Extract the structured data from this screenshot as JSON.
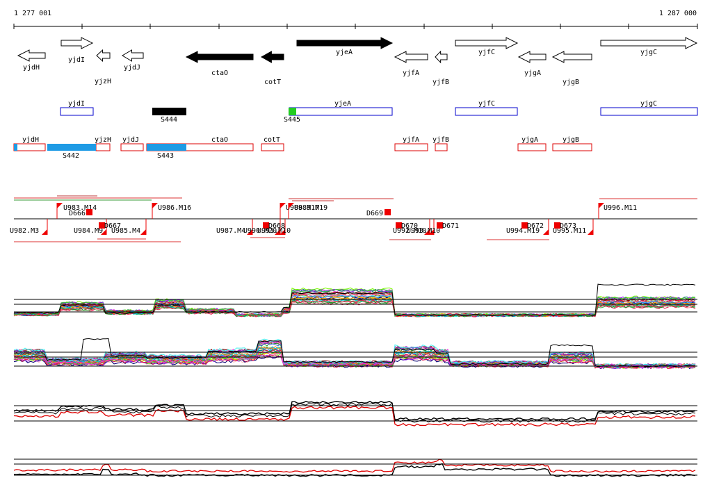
{
  "ruler": {
    "start_label": "1 277 001",
    "end_label": "1 287 000",
    "tick_count": 11
  },
  "colors": {
    "gene_track_outline": "#0000cc",
    "operon_outline": "#dd0000",
    "predicted_segment": "#1e9be5",
    "strong_segment": "#000000",
    "start_segment": "#22cc22",
    "promoter_marker": "#ee0000",
    "line_series_black": "#000000",
    "line_series_red": "#dd0000"
  },
  "genes": [
    {
      "name": "yjdH",
      "strand": "-",
      "filled": false
    },
    {
      "name": "yjdI",
      "strand": "+",
      "filled": false
    },
    {
      "name": "yjzH",
      "strand": "-",
      "filled": false
    },
    {
      "name": "yjdJ",
      "strand": "-",
      "filled": false
    },
    {
      "name": "ctaO",
      "strand": "-",
      "filled": true
    },
    {
      "name": "cotT",
      "strand": "-",
      "filled": true
    },
    {
      "name": "yjeA",
      "strand": "+",
      "filled": true
    },
    {
      "name": "yjfA",
      "strand": "-",
      "filled": false
    },
    {
      "name": "yjfB",
      "strand": "-",
      "filled": false
    },
    {
      "name": "yjfC",
      "strand": "+",
      "filled": false
    },
    {
      "name": "yjgA",
      "strand": "-",
      "filled": false
    },
    {
      "name": "yjgB",
      "strand": "-",
      "filled": false
    },
    {
      "name": "yjgC",
      "strand": "+",
      "filled": false
    }
  ],
  "forward_track": {
    "boxes": [
      {
        "label": "yjdI"
      },
      {
        "label": "yjeA"
      },
      {
        "label": "yjfC"
      },
      {
        "label": "yjgC"
      }
    ],
    "segments": [
      {
        "label": "S444",
        "kind": "strong"
      },
      {
        "label": "S445",
        "kind": "start"
      }
    ]
  },
  "reverse_track": {
    "boxes": [
      {
        "label": "yjdH"
      },
      {
        "label": "yjzH"
      },
      {
        "label": "yjdJ"
      },
      {
        "label": "ctaO"
      },
      {
        "label": "cotT"
      },
      {
        "label": "yjfA"
      },
      {
        "label": "yjfB"
      },
      {
        "label": "yjgA"
      },
      {
        "label": "yjgB"
      }
    ],
    "segments": [
      {
        "label": "S442"
      },
      {
        "label": "S443"
      }
    ]
  },
  "upper_markers": [
    {
      "label": "U983.M14"
    },
    {
      "label": "D666"
    },
    {
      "label": "U986.M16"
    },
    {
      "label": "U988.M17"
    },
    {
      "label": "U989.M19"
    },
    {
      "label": "D669"
    },
    {
      "label": "U996.M11"
    }
  ],
  "lower_markers": [
    {
      "label": "U982.M3"
    },
    {
      "label": "U984.M9"
    },
    {
      "label": "D667"
    },
    {
      "label": "U985.M4"
    },
    {
      "label": "U987.M4"
    },
    {
      "label": "U990.M20"
    },
    {
      "label": "D668"
    },
    {
      "label": "U991.M10"
    },
    {
      "label": "D670"
    },
    {
      "label": "U992.M10"
    },
    {
      "label": "U993.M10"
    },
    {
      "label": "D671"
    },
    {
      "label": "U994.M19"
    },
    {
      "label": "D672"
    },
    {
      "label": "U995.M11"
    },
    {
      "label": "D673"
    }
  ]
}
